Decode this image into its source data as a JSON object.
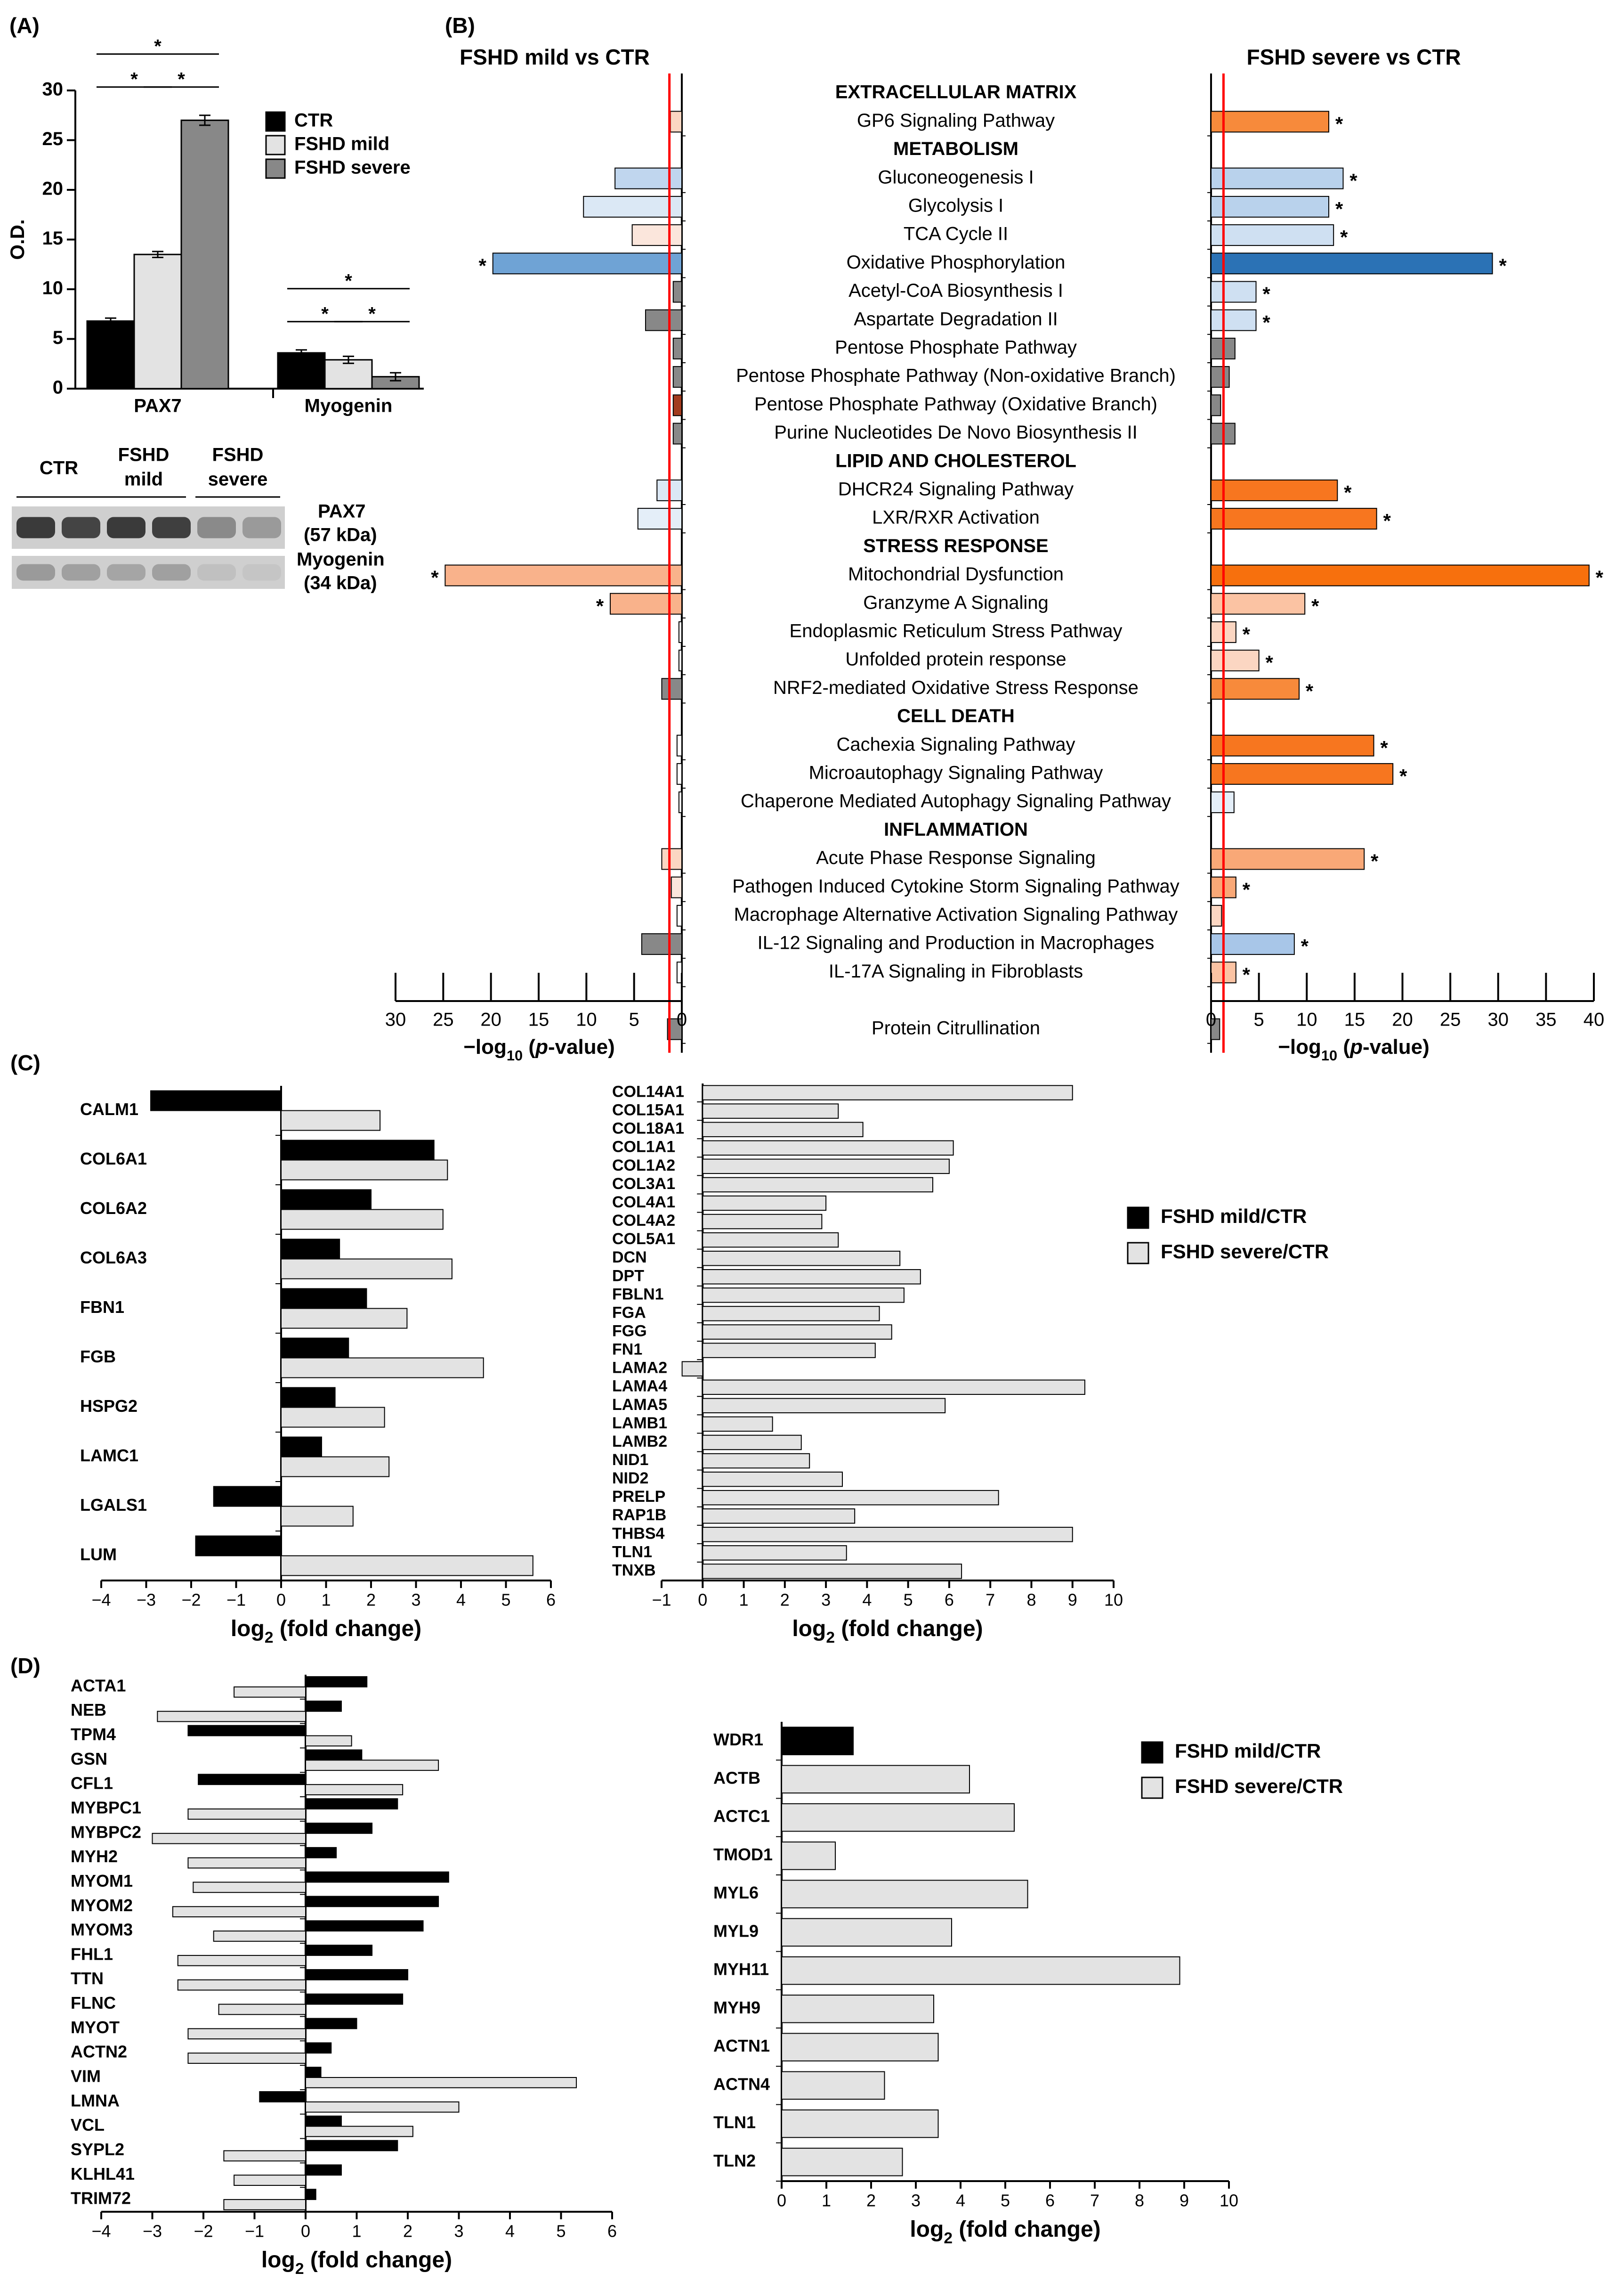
{
  "colors": {
    "black": "#000000",
    "ctr": "#000000",
    "mild": "#e3e3e3",
    "severe": "#888888",
    "redline": "#ff0000",
    "fc_mild": "#000000",
    "fc_severe": "#e3e3e3"
  },
  "chart_data": [
    {
      "id": "A",
      "type": "bar",
      "panel_label": "(A)",
      "ylabel": "O.D.",
      "ylim": [
        0,
        30
      ],
      "yticks": [
        "0",
        "5",
        "10",
        "15",
        "20",
        "25",
        "30"
      ],
      "categories": [
        "PAX7",
        "Myogenin"
      ],
      "series": [
        {
          "name": "CTR",
          "values": [
            6.8,
            3.6
          ],
          "err": [
            0.3,
            0.3
          ]
        },
        {
          "name": "FSHD mild",
          "values": [
            13.5,
            2.9
          ],
          "err": [
            0.3,
            0.35
          ]
        },
        {
          "name": "FSHD severe",
          "values": [
            27.0,
            1.2
          ],
          "err": [
            0.5,
            0.4
          ]
        }
      ],
      "significance": [
        {
          "group": 0,
          "from": 0,
          "to": 2,
          "level": 0,
          "text": "*"
        },
        {
          "group": 0,
          "from": 0,
          "to": 1,
          "level": 1,
          "text": "*"
        },
        {
          "group": 0,
          "from": 1,
          "to": 2,
          "level": 1,
          "text": "*"
        },
        {
          "group": 1,
          "from": 0,
          "to": 2,
          "level": 0,
          "text": "*"
        },
        {
          "group": 1,
          "from": 0,
          "to": 1,
          "level": 1,
          "text": "*"
        },
        {
          "group": 1,
          "from": 1,
          "to": 2,
          "level": 1,
          "text": "*"
        }
      ],
      "legend": [
        "CTR",
        "FSHD mild",
        "FSHD severe"
      ],
      "blot": {
        "groups": [
          "CTR",
          "FSHD\nmild",
          "FSHD\nsevere"
        ],
        "bands": [
          {
            "name": "PAX7",
            "size": "(57 kDa)"
          },
          {
            "name": "Myogenin",
            "size": "(34 kDa)"
          }
        ]
      }
    },
    {
      "id": "B",
      "type": "bar",
      "orientation": "horizontal",
      "panel_label": "(B)",
      "left_title": "FSHD mild vs CTR",
      "right_title": "FSHD severe vs CTR",
      "xlabel": "−log10 (p-value)",
      "left_xlim": [
        0,
        30
      ],
      "left_xticks": [
        "30",
        "25",
        "20",
        "15",
        "10",
        "5",
        "0"
      ],
      "right_xlim": [
        0,
        40
      ],
      "right_xticks": [
        "0",
        "5",
        "10",
        "15",
        "20",
        "25",
        "30",
        "35",
        "40"
      ],
      "threshold": 1.3,
      "rows": [
        {
          "label": "EXTRACELLULAR MATRIX",
          "header": true
        },
        {
          "label": "GP6 Signaling Pathway",
          "mild": 1.2,
          "mild_color": "#fbd6c2",
          "mild_sig": "",
          "severe": 12.3,
          "severe_color": "#f78a3b",
          "severe_sig": "*"
        },
        {
          "label": "METABOLISM",
          "header": true
        },
        {
          "label": "Gluconeogenesis I",
          "mild": 7.0,
          "mild_color": "#c0d6ee",
          "mild_sig": "",
          "severe": 13.8,
          "severe_color": "#b9d2ec",
          "severe_sig": "*"
        },
        {
          "label": "Glycolysis I",
          "mild": 10.3,
          "mild_color": "#dbe8f5",
          "mild_sig": "",
          "severe": 12.3,
          "severe_color": "#b9d2ec",
          "severe_sig": "*"
        },
        {
          "label": "TCA Cycle II",
          "mild": 5.2,
          "mild_color": "#fbe6dc",
          "mild_sig": "",
          "severe": 12.8,
          "severe_color": "#cfe0f2",
          "severe_sig": "*"
        },
        {
          "label": "Oxidative Phosphorylation",
          "mild": 19.8,
          "mild_color": "#6fa3d5",
          "mild_sig": "*",
          "severe": 29.4,
          "severe_color": "#2b72b5",
          "severe_sig": "*"
        },
        {
          "label": "Acetyl-CoA Biosynthesis I",
          "mild": 0.9,
          "mild_color": "#888888",
          "mild_sig": "",
          "severe": 4.7,
          "severe_color": "#cfe0f2",
          "severe_sig": "*"
        },
        {
          "label": "Aspartate Degradation II",
          "mild": 3.8,
          "mild_color": "#888888",
          "mild_sig": "",
          "severe": 4.7,
          "severe_color": "#cfe0f2",
          "severe_sig": "*"
        },
        {
          "label": "Pentose Phosphate Pathway",
          "mild": 0.9,
          "mild_color": "#888888",
          "mild_sig": "",
          "severe": 2.5,
          "severe_color": "#888888",
          "severe_sig": ""
        },
        {
          "label": "Pentose Phosphate Pathway (Non-oxidative Branch)",
          "mild": 0.9,
          "mild_color": "#888888",
          "mild_sig": "",
          "severe": 1.9,
          "severe_color": "#888888",
          "severe_sig": ""
        },
        {
          "label": "Pentose Phosphate Pathway (Oxidative Branch)",
          "mild": 0.9,
          "mild_color": "#a23b1e",
          "mild_sig": "",
          "severe": 1.0,
          "severe_color": "#888888",
          "severe_sig": ""
        },
        {
          "label": "Purine Nucleotides De Novo Biosynthesis II",
          "mild": 0.9,
          "mild_color": "#888888",
          "mild_sig": "",
          "severe": 2.5,
          "severe_color": "#888888",
          "severe_sig": ""
        },
        {
          "label": "LIPID AND CHOLESTEROL",
          "header": true
        },
        {
          "label": "DHCR24 Signaling Pathway",
          "mild": 2.6,
          "mild_color": "#dbe8f5",
          "mild_sig": "",
          "severe": 13.2,
          "severe_color": "#f7761f",
          "severe_sig": "*"
        },
        {
          "label": "LXR/RXR Activation",
          "mild": 4.6,
          "mild_color": "#e4eef8",
          "mild_sig": "",
          "severe": 17.3,
          "severe_color": "#f7761f",
          "severe_sig": "*"
        },
        {
          "label": "STRESS RESPONSE",
          "header": true
        },
        {
          "label": "Mitochondrial Dysfunction",
          "mild": 24.8,
          "mild_color": "#f9b28b",
          "mild_sig": "*",
          "severe": 39.5,
          "severe_color": "#f7700d",
          "severe_sig": "*"
        },
        {
          "label": "Granzyme A Signaling",
          "mild": 7.5,
          "mild_color": "#f9b28b",
          "mild_sig": "*",
          "severe": 9.8,
          "severe_color": "#fbc3a3",
          "severe_sig": "*"
        },
        {
          "label": "Endoplasmic Reticulum Stress Pathway",
          "mild": 0.3,
          "mild_color": "#ffffff",
          "mild_sig": "",
          "severe": 2.6,
          "severe_color": "#fbd6c2",
          "severe_sig": "*"
        },
        {
          "label": "Unfolded protein response",
          "mild": 0.3,
          "mild_color": "#ffffff",
          "mild_sig": "",
          "severe": 5.0,
          "severe_color": "#fbd6c2",
          "severe_sig": "*"
        },
        {
          "label": "NRF2-mediated Oxidative Stress Response",
          "mild": 2.1,
          "mild_color": "#888888",
          "mild_sig": "",
          "severe": 9.2,
          "severe_color": "#f78a3b",
          "severe_sig": "*"
        },
        {
          "label": "CELL DEATH",
          "header": true
        },
        {
          "label": "Cachexia Signaling Pathway",
          "mild": 0.5,
          "mild_color": "#ffffff",
          "mild_sig": "",
          "severe": 17.0,
          "severe_color": "#f7761f",
          "severe_sig": "*"
        },
        {
          "label": "Microautophagy Signaling Pathway",
          "mild": 0.5,
          "mild_color": "#ffffff",
          "mild_sig": "",
          "severe": 19.0,
          "severe_color": "#f7761f",
          "severe_sig": "*"
        },
        {
          "label": "Chaperone Mediated Autophagy Signaling Pathway",
          "mild": 0.3,
          "mild_color": "#ffffff",
          "mild_sig": "",
          "severe": 2.4,
          "severe_color": "#e4eef8",
          "severe_sig": ""
        },
        {
          "label": "INFLAMMATION",
          "header": true
        },
        {
          "label": "Acute Phase Response Signaling",
          "mild": 2.1,
          "mild_color": "#fbd6c2",
          "mild_sig": "",
          "severe": 16.0,
          "severe_color": "#f9a877",
          "severe_sig": "*"
        },
        {
          "label": "Pathogen Induced Cytokine Storm Signaling Pathway",
          "mild": 1.1,
          "mild_color": "#fbe6dc",
          "mild_sig": "",
          "severe": 2.6,
          "severe_color": "#f9a877",
          "severe_sig": "*"
        },
        {
          "label": "Macrophage Alternative Activation Signaling Pathway",
          "mild": 0.5,
          "mild_color": "#ffffff",
          "mild_sig": "",
          "severe": 1.1,
          "severe_color": "#fbd6c2",
          "severe_sig": ""
        },
        {
          "label": "IL-12 Signaling and Production in Macrophages",
          "mild": 4.2,
          "mild_color": "#888888",
          "mild_sig": "",
          "severe": 8.7,
          "severe_color": "#a8c6e8",
          "severe_sig": "*"
        },
        {
          "label": "IL-17A Signaling in Fibroblasts",
          "mild": 0.5,
          "mild_color": "#ffffff",
          "mild_sig": "",
          "severe": 2.6,
          "severe_color": "#fbc3a3",
          "severe_sig": "*"
        },
        {
          "label": "",
          "spacer": true
        },
        {
          "label": "Protein Citrullination",
          "mild": 1.5,
          "mild_color": "#888888",
          "mild_sig": "",
          "severe": 0.9,
          "severe_color": "#888888",
          "severe_sig": ""
        }
      ]
    },
    {
      "id": "C1",
      "type": "bar",
      "orientation": "horizontal",
      "panel_label": "(C)",
      "xlabel": "log2 (fold change)",
      "xlim": [
        -4,
        6
      ],
      "xticks": [
        "−4",
        "−3",
        "−2",
        "−1",
        "0",
        "1",
        "2",
        "3",
        "4",
        "5",
        "6"
      ],
      "categories": [
        "CALM1",
        "COL6A1",
        "COL6A2",
        "COL6A3",
        "FBN1",
        "FGB",
        "HSPG2",
        "LAMC1",
        "LGALS1",
        "LUM"
      ],
      "series": [
        {
          "name": "FSHD mild/CTR",
          "values": [
            -2.9,
            3.4,
            2.0,
            1.3,
            1.9,
            1.5,
            1.2,
            0.9,
            -1.5,
            -1.9
          ]
        },
        {
          "name": "FSHD severe/CTR",
          "values": [
            2.2,
            3.7,
            3.6,
            3.8,
            2.8,
            4.5,
            2.3,
            2.4,
            1.6,
            5.6
          ]
        }
      ]
    },
    {
      "id": "C2",
      "type": "bar",
      "orientation": "horizontal",
      "xlabel": "log2 (fold change)",
      "xlim": [
        -1,
        10
      ],
      "xticks": [
        "−1",
        "0",
        "1",
        "2",
        "3",
        "4",
        "5",
        "6",
        "7",
        "8",
        "9",
        "10"
      ],
      "categories": [
        "COL14A1",
        "COL15A1",
        "COL18A1",
        "COL1A1",
        "COL1A2",
        "COL3A1",
        "COL4A1",
        "COL4A2",
        "COL5A1",
        "DCN",
        "DPT",
        "FBLN1",
        "FGA",
        "FGG",
        "FN1",
        "LAMA2",
        "LAMA4",
        "LAMA5",
        "LAMB1",
        "LAMB2",
        "NID1",
        "NID2",
        "PRELP",
        "RAP1B",
        "THBS4",
        "TLN1",
        "TNXB"
      ],
      "series": [
        {
          "name": "FSHD severe/CTR",
          "values": [
            9.0,
            3.3,
            3.9,
            6.1,
            6.0,
            5.6,
            3.0,
            2.9,
            3.3,
            4.8,
            5.3,
            4.9,
            4.3,
            4.6,
            4.2,
            -0.5,
            9.3,
            5.9,
            1.7,
            2.4,
            2.6,
            3.4,
            7.2,
            3.7,
            9.0,
            3.5,
            6.3
          ]
        }
      ],
      "legend": [
        "FSHD mild/CTR",
        "FSHD severe/CTR"
      ]
    },
    {
      "id": "D1",
      "type": "bar",
      "orientation": "horizontal",
      "panel_label": "(D)",
      "xlabel": "log2 (fold change)",
      "xlim": [
        -4,
        6
      ],
      "xticks": [
        "−4",
        "−3",
        "−2",
        "−1",
        "0",
        "1",
        "2",
        "3",
        "4",
        "5",
        "6"
      ],
      "categories": [
        "ACTA1",
        "NEB",
        "TPM4",
        "GSN",
        "CFL1",
        "MYBPC1",
        "MYBPC2",
        "MYH2",
        "MYOM1",
        "MYOM2",
        "MYOM3",
        "FHL1",
        "TTN",
        "FLNC",
        "MYOT",
        "ACTN2",
        "VIM",
        "LMNA",
        "VCL",
        "SYPL2",
        "KLHL41",
        "TRIM72"
      ],
      "series": [
        {
          "name": "FSHD mild/CTR",
          "values": [
            1.2,
            0.7,
            -2.3,
            1.1,
            -2.1,
            1.8,
            1.3,
            0.6,
            2.8,
            2.6,
            2.3,
            1.3,
            2.0,
            1.9,
            1.0,
            0.5,
            0.3,
            -0.9,
            0.7,
            1.8,
            0.7,
            0.2
          ]
        },
        {
          "name": "FSHD severe/CTR",
          "values": [
            -1.4,
            -2.9,
            0.9,
            2.6,
            1.9,
            -2.3,
            -3.0,
            -2.3,
            -2.2,
            -2.6,
            -1.8,
            -2.5,
            -2.5,
            -1.7,
            -2.3,
            -2.3,
            5.3,
            3.0,
            2.1,
            -1.6,
            -1.4,
            -1.6
          ]
        }
      ]
    },
    {
      "id": "D2",
      "type": "bar",
      "orientation": "horizontal",
      "xlabel": "log2 (fold change)",
      "xlim": [
        0,
        10
      ],
      "xticks": [
        "0",
        "1",
        "2",
        "3",
        "4",
        "5",
        "6",
        "7",
        "8",
        "9",
        "10"
      ],
      "categories": [
        "WDR1",
        "ACTB",
        "ACTC1",
        "TMOD1",
        "MYL6",
        "MYL9",
        "MYH11",
        "MYH9",
        "ACTN1",
        "ACTN4",
        "TLN1",
        "TLN2"
      ],
      "series": [
        {
          "name": "FSHD mild/CTR",
          "values": [
            1.6,
            null,
            null,
            null,
            null,
            null,
            null,
            null,
            null,
            null,
            null,
            null
          ]
        },
        {
          "name": "FSHD severe/CTR",
          "values": [
            null,
            4.2,
            5.2,
            1.2,
            5.5,
            3.8,
            8.9,
            3.4,
            3.5,
            2.3,
            3.5,
            2.7
          ]
        }
      ],
      "legend": [
        "FSHD mild/CTR",
        "FSHD severe/CTR"
      ]
    }
  ]
}
